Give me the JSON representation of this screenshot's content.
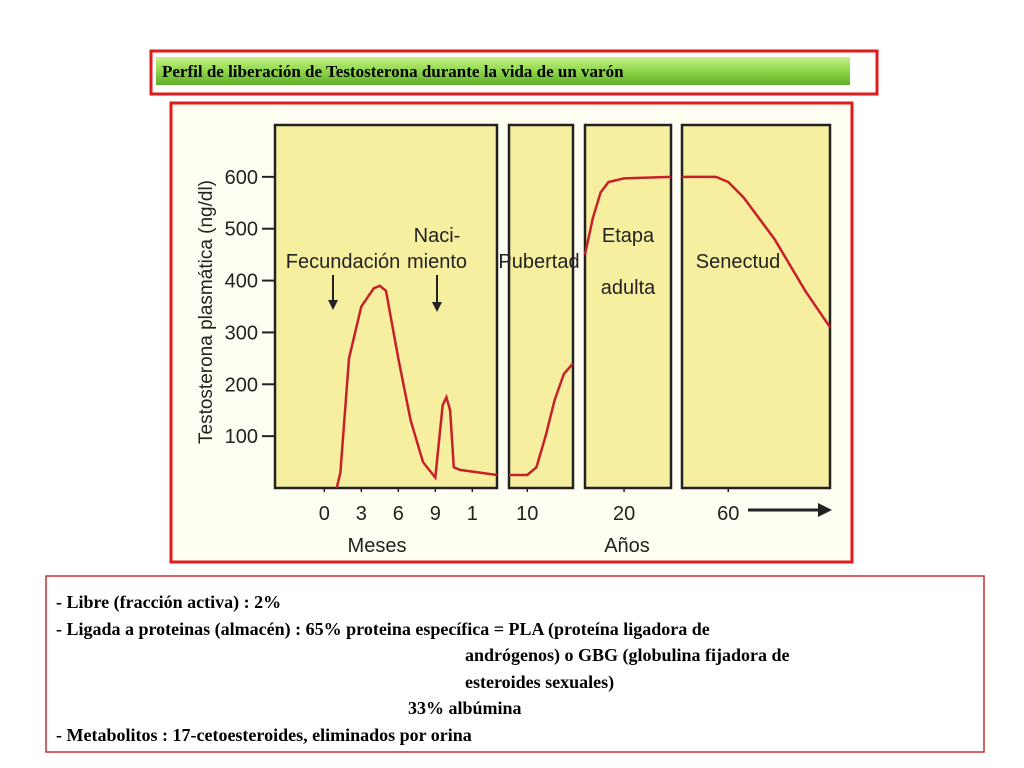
{
  "banner": {
    "title": "Perfil de liberación de Testosterona  durante la vida de un varón"
  },
  "chart_data": {
    "type": "line",
    "ylabel": "Testosterona plasmática (ng/dl)",
    "color": "#c8202a",
    "ylim": [
      0,
      700
    ],
    "yticks": [
      100,
      200,
      300,
      400,
      500,
      600
    ],
    "xlabels": [
      "Meses",
      "Años"
    ],
    "panels": [
      {
        "xlim": [
          -4,
          14
        ],
        "xticks": [
          0,
          3,
          6,
          9,
          {
            "value": 12,
            "label": "1"
          }
        ],
        "annotations": [
          [
            "Fecundación"
          ],
          [
            "Naci-",
            "miento"
          ]
        ],
        "x": [
          1,
          1.3,
          2,
          3,
          4,
          4.5,
          5,
          6,
          7,
          8,
          9,
          9.3,
          9.6,
          9.9,
          10.2,
          10.5,
          11,
          14
        ],
        "values": [
          0,
          30,
          250,
          350,
          385,
          390,
          380,
          250,
          130,
          50,
          20,
          90,
          160,
          175,
          150,
          40,
          35,
          25
        ]
      },
      {
        "xlim": [
          8,
          15
        ],
        "xticks": [
          10
        ],
        "annotations": [
          [
            "Pubertad"
          ]
        ],
        "x": [
          8,
          10,
          11,
          12,
          13,
          14,
          15
        ],
        "values": [
          25,
          25,
          40,
          100,
          170,
          220,
          240
        ]
      },
      {
        "xlim": [
          10,
          32
        ],
        "xticks": [
          20
        ],
        "annotations": [
          [
            "Etapa",
            "adulta"
          ]
        ],
        "x": [
          10,
          12,
          14,
          16,
          20,
          32
        ],
        "values": [
          450,
          520,
          570,
          590,
          597,
          600
        ]
      },
      {
        "xlim": [
          45,
          93
        ],
        "xticks": [
          60
        ],
        "annotations": [
          [
            "Senectud"
          ]
        ],
        "x": [
          45,
          56,
          60,
          65,
          75,
          85,
          93
        ],
        "values": [
          600,
          600,
          590,
          560,
          480,
          380,
          310
        ]
      }
    ]
  },
  "notes": {
    "lines": [
      "- Libre (fracción activa) : 2%",
      "- Ligada a proteinas (almacén) : 65% proteina específica = PLA (proteína ligadora de",
      "andrógenos) o GBG (globulina fijadora de",
      "esteroides sexuales)",
      "33% albúmina",
      "- Metabolitos : 17-cetoesteroides, eliminados por orina"
    ]
  }
}
